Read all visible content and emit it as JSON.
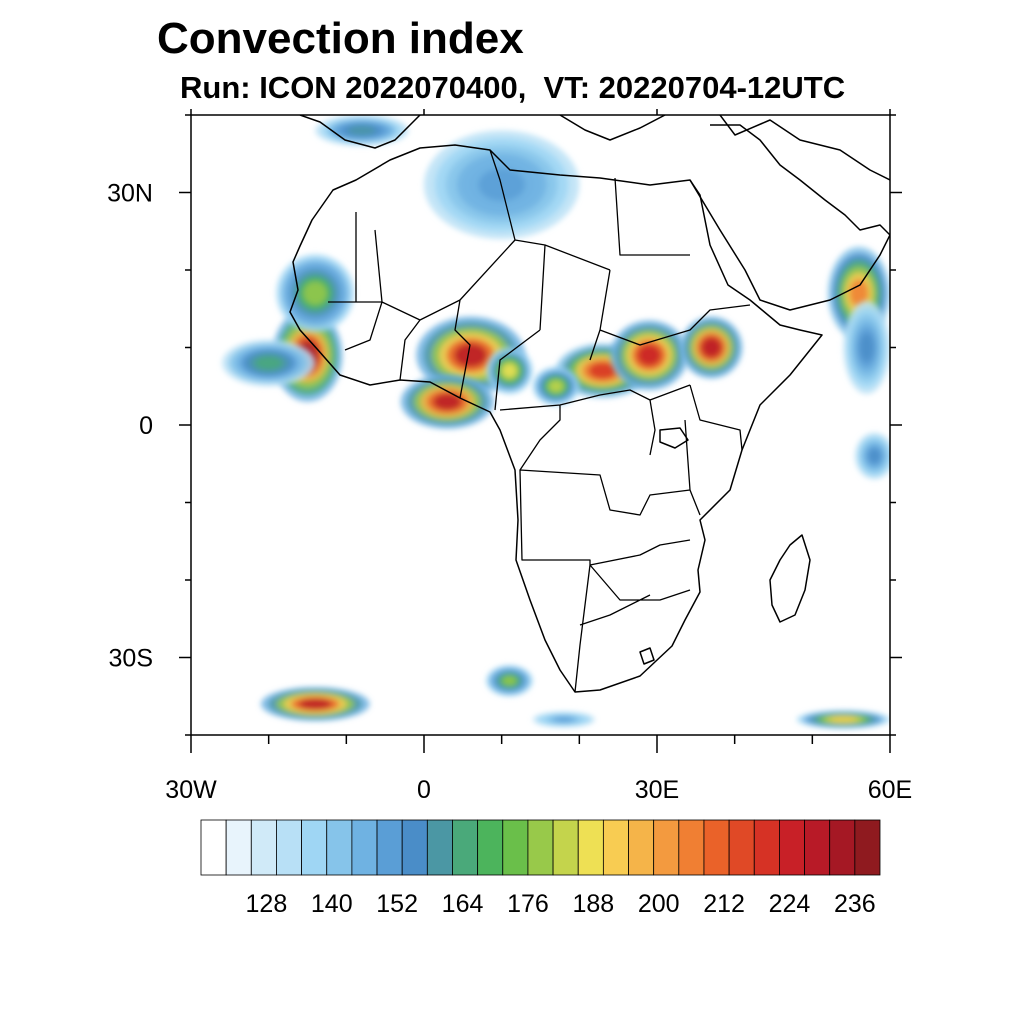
{
  "title": "Convection index",
  "subtitle": "Run: ICON 2022070400,  VT: 20220704-12UTC",
  "map": {
    "lon_range": [
      -30,
      60
    ],
    "lat_range": [
      -40,
      40
    ],
    "lat_ticks": [
      {
        "lat": 30,
        "label": "30N"
      },
      {
        "lat": 0,
        "label": "0"
      },
      {
        "lat": -30,
        "label": "30S"
      }
    ],
    "lon_ticks": [
      {
        "lon": -30,
        "label": "30W"
      },
      {
        "lon": 0,
        "label": "0"
      },
      {
        "lon": 30,
        "label": "30E"
      },
      {
        "lon": 60,
        "label": "60E"
      }
    ],
    "minor_lat_ticks": [
      40,
      20,
      10,
      -10,
      -20,
      -40
    ],
    "minor_lon_ticks": [
      -20,
      -10,
      10,
      20,
      40,
      50
    ]
  },
  "colorbar": {
    "colors": [
      "#ffffff",
      "#e8f4fc",
      "#d0eaf8",
      "#b8e0f6",
      "#9fd6f4",
      "#86c4ea",
      "#6fb2e2",
      "#5a9ed6",
      "#4a8dc8",
      "#4b97a4",
      "#4aa97a",
      "#4cb45c",
      "#6abf4a",
      "#98c94a",
      "#c4d44c",
      "#eee054",
      "#f8cc52",
      "#f5b449",
      "#f39a3f",
      "#f07f33",
      "#ea6229",
      "#e04926",
      "#d63225",
      "#c82027",
      "#b81a27",
      "#a51824",
      "#8f1a1f"
    ],
    "labels": [
      {
        "index": 3,
        "text": "128"
      },
      {
        "index": 6,
        "text": "140"
      },
      {
        "index": 9,
        "text": "152"
      },
      {
        "index": 12,
        "text": "164"
      },
      {
        "index": 15,
        "text": "176"
      },
      {
        "index": 18,
        "text": "188"
      },
      {
        "index": 21,
        "text": "200"
      },
      {
        "index": 24,
        "text": "212"
      },
      {
        "index": 27,
        "text": "224"
      },
      {
        "index": 30,
        "text": "236"
      }
    ]
  },
  "convection_cells": [
    {
      "lon": -15,
      "lat": 9,
      "rx": 4.5,
      "ry": 6,
      "intensity": 0.95
    },
    {
      "lon": -20,
      "lat": 8,
      "rx": 6,
      "ry": 3,
      "intensity": 0.35
    },
    {
      "lon": -14,
      "lat": 17,
      "rx": 5,
      "ry": 5,
      "intensity": 0.45
    },
    {
      "lon": 6,
      "lat": 9,
      "rx": 7,
      "ry": 5,
      "intensity": 0.9
    },
    {
      "lon": 3,
      "lat": 3,
      "rx": 6,
      "ry": 3.5,
      "intensity": 0.92
    },
    {
      "lon": 23,
      "lat": 7,
      "rx": 6,
      "ry": 3.5,
      "intensity": 0.85
    },
    {
      "lon": 29,
      "lat": 9,
      "rx": 5,
      "ry": 4.5,
      "intensity": 0.88
    },
    {
      "lon": 37,
      "lat": 10,
      "rx": 4,
      "ry": 4,
      "intensity": 0.93
    },
    {
      "lon": 56,
      "lat": 17,
      "rx": 4,
      "ry": 6,
      "intensity": 0.7
    },
    {
      "lon": 57,
      "lat": 10,
      "rx": 3,
      "ry": 6,
      "intensity": 0.25
    },
    {
      "lon": 10,
      "lat": 31,
      "rx": 10,
      "ry": 7,
      "intensity": 0.22
    },
    {
      "lon": -8,
      "lat": 38,
      "rx": 6,
      "ry": 2,
      "intensity": 0.3
    },
    {
      "lon": 11,
      "lat": 7,
      "rx": 3,
      "ry": 3,
      "intensity": 0.55
    },
    {
      "lon": 17,
      "lat": 5,
      "rx": 3,
      "ry": 2.5,
      "intensity": 0.5
    },
    {
      "lon": -14,
      "lat": -36,
      "rx": 7,
      "ry": 2.2,
      "intensity": 0.9
    },
    {
      "lon": 11,
      "lat": -33,
      "rx": 3,
      "ry": 2,
      "intensity": 0.45
    },
    {
      "lon": 54,
      "lat": -38,
      "rx": 6,
      "ry": 1.2,
      "intensity": 0.6
    },
    {
      "lon": 18,
      "lat": -38,
      "rx": 4,
      "ry": 1,
      "intensity": 0.2
    },
    {
      "lon": 58,
      "lat": -4,
      "rx": 2.5,
      "ry": 3,
      "intensity": 0.25
    }
  ]
}
